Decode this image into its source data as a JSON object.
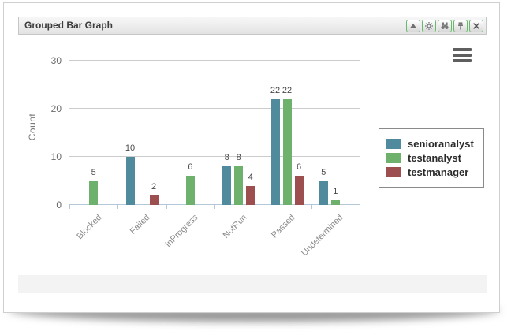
{
  "window": {
    "title": "Grouped Bar Graph",
    "toolbar_buttons": [
      {
        "name": "collapse",
        "icon": "triangle-up-icon"
      },
      {
        "name": "settings",
        "icon": "gear-icon"
      },
      {
        "name": "search",
        "icon": "binoculars-icon"
      },
      {
        "name": "pin",
        "icon": "pin-icon"
      },
      {
        "name": "close",
        "icon": "close-icon"
      }
    ],
    "button_border_color": "#67ba6b"
  },
  "chart_data": {
    "type": "bar",
    "title": "Grouped Bar Graph",
    "xlabel": "",
    "ylabel": "Count",
    "categories": [
      "Blocked",
      "Failed",
      "InProgress",
      "NotRun",
      "Passed",
      "Undetermined"
    ],
    "series": [
      {
        "name": "senioranalyst",
        "color": "#4f8b9d",
        "values": [
          null,
          10,
          null,
          8,
          22,
          5
        ]
      },
      {
        "name": "testanalyst",
        "color": "#6eb16d",
        "values": [
          5,
          null,
          6,
          8,
          22,
          1
        ]
      },
      {
        "name": "testmanager",
        "color": "#9d4e4e",
        "values": [
          null,
          2,
          null,
          4,
          6,
          null
        ]
      }
    ],
    "yticks": [
      0,
      10,
      20,
      30
    ],
    "ylim": [
      0,
      33
    ],
    "bar_value_labels": true,
    "grid": true,
    "legend_position": "right",
    "axis_color": "#b4c7d8",
    "grid_color": "#cccccc"
  }
}
